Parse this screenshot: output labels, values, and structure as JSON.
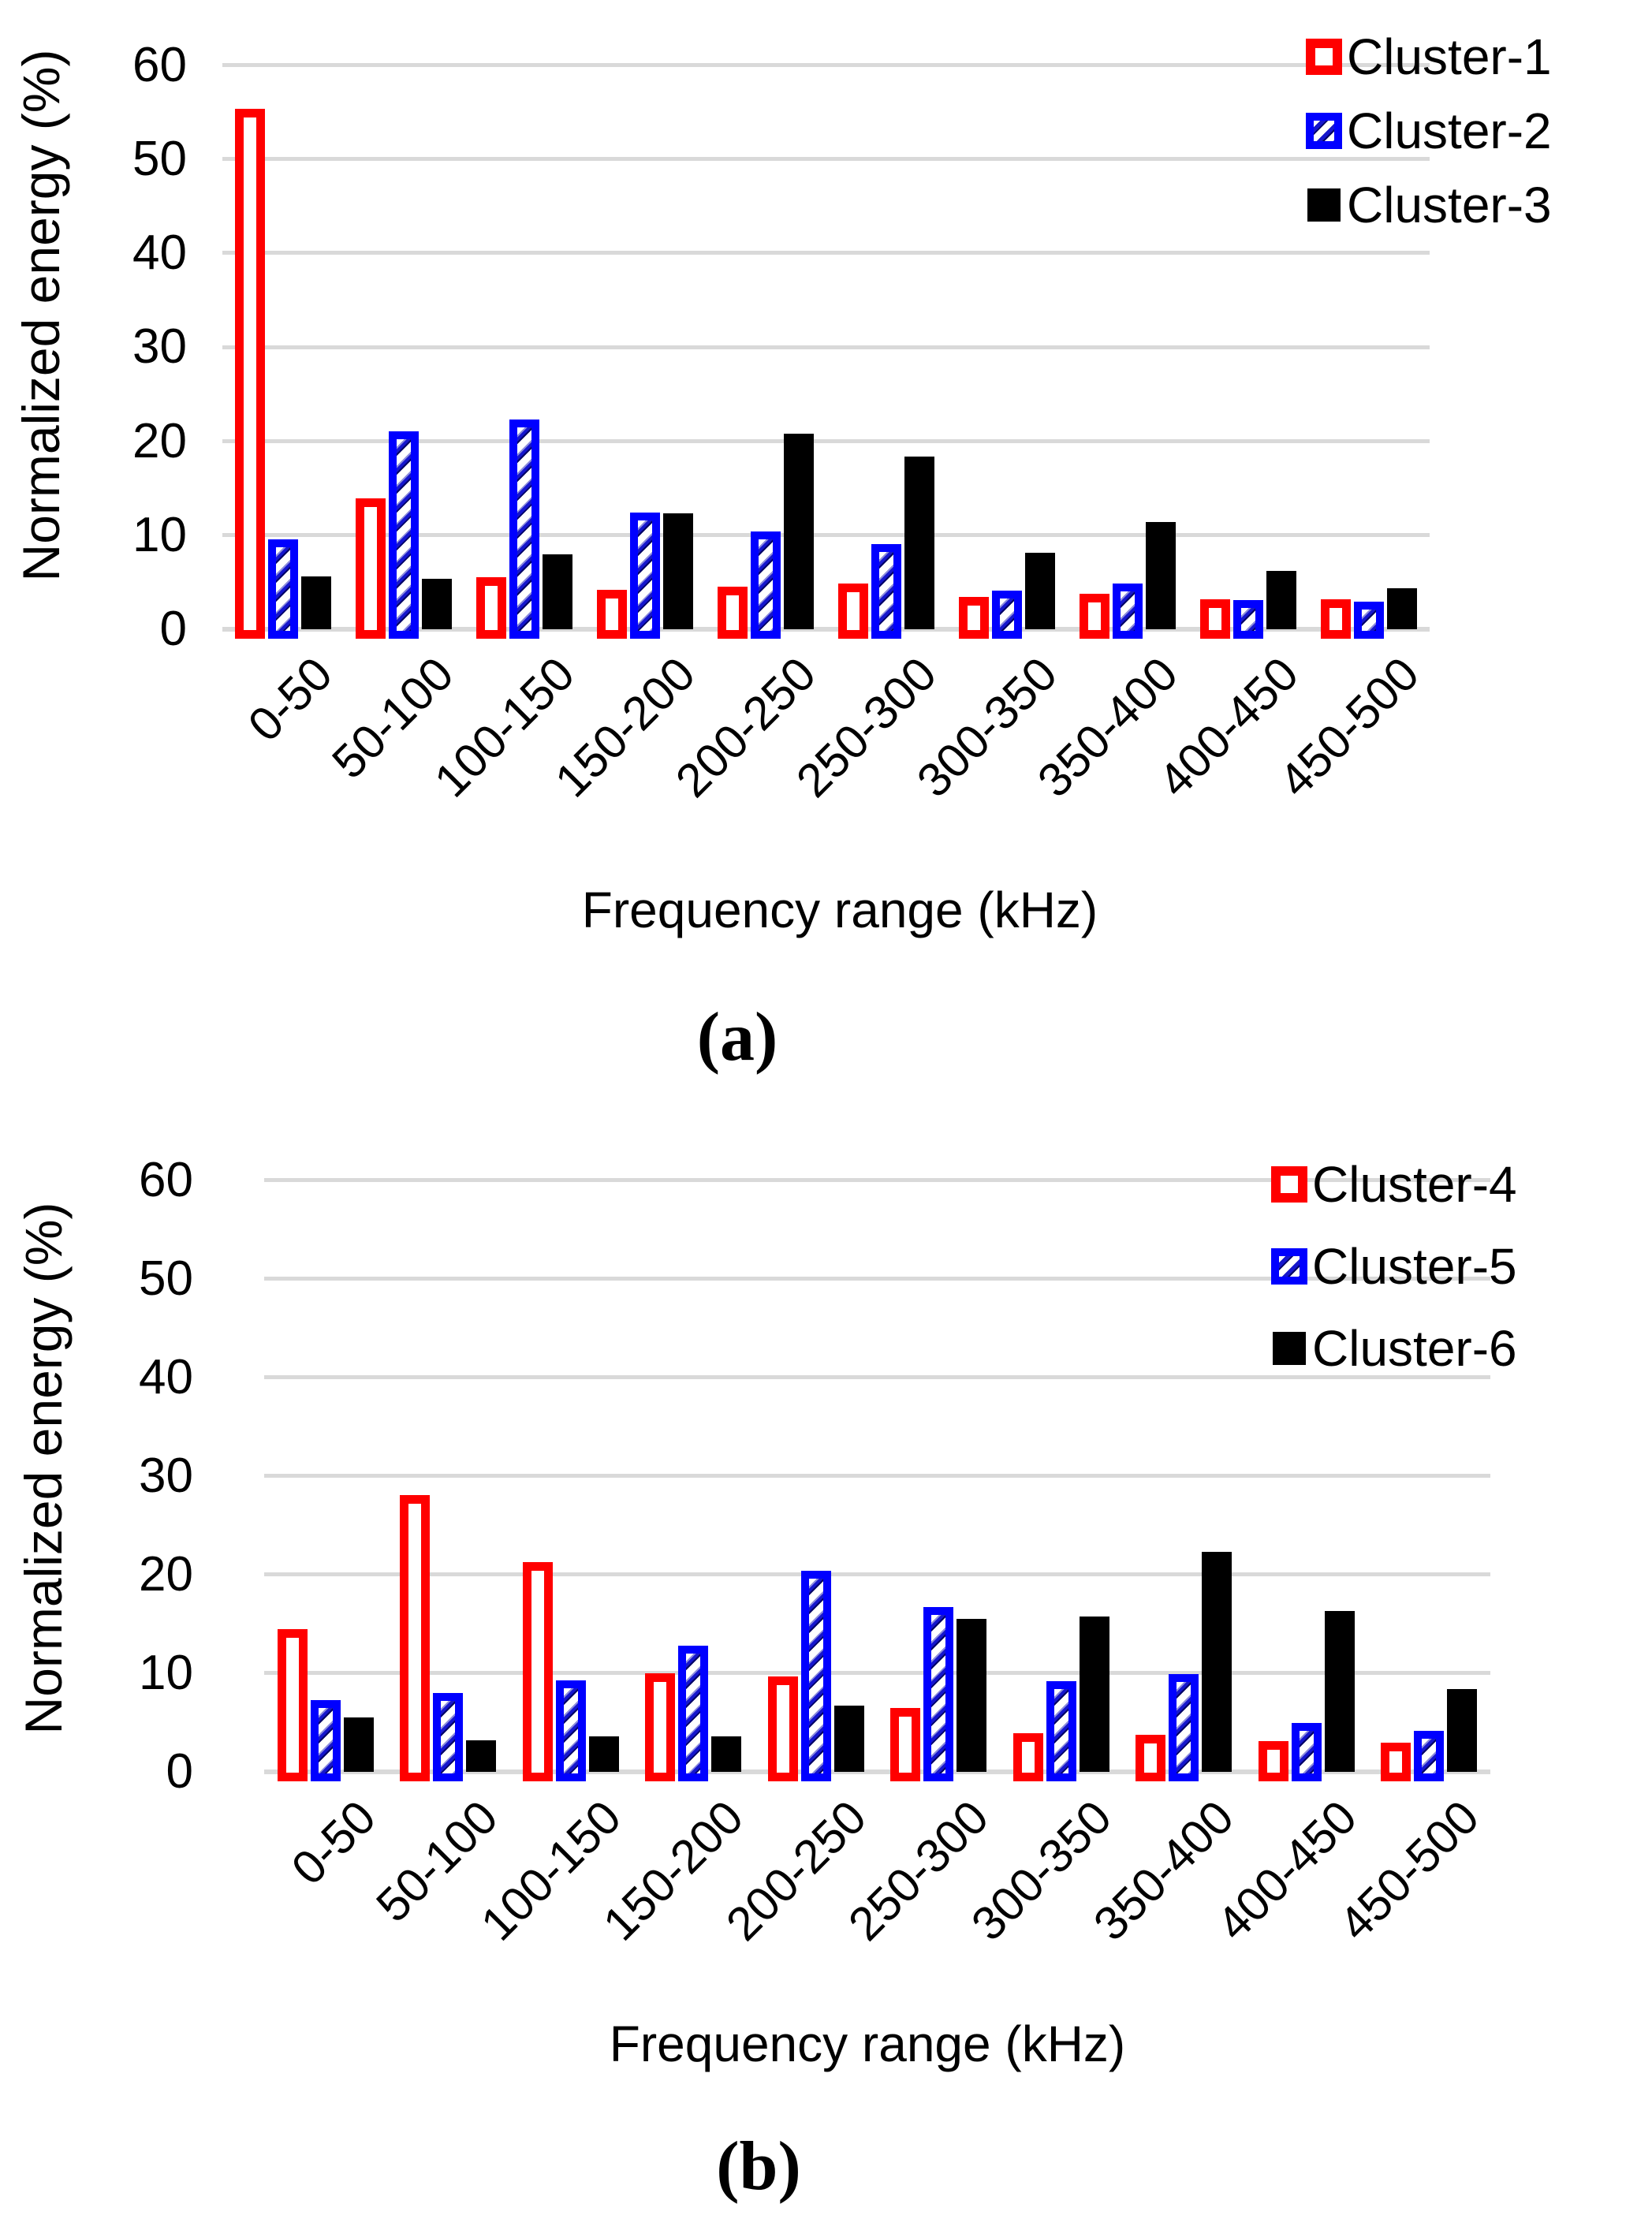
{
  "figure": {
    "background": "#ffffff",
    "gridline_color": "#d9d9d9",
    "text_color": "#000000"
  },
  "chart_data": [
    {
      "id": "a",
      "type": "bar",
      "caption": "(a)",
      "xlabel": "Frequency range (kHz)",
      "ylabel": "Normalized energy (%)",
      "ylim": [
        0,
        60
      ],
      "yticks": [
        0,
        10,
        20,
        30,
        40,
        50,
        60
      ],
      "grid": true,
      "legend_position": "top-right",
      "categories": [
        "0-50",
        "50-100",
        "100-150",
        "150-200",
        "200-250",
        "250-300",
        "300-350",
        "350-400",
        "400-450",
        "450-500"
      ],
      "series": [
        {
          "name": "Cluster-1",
          "style": "red-outline",
          "color": "#ff0000",
          "values": [
            55.4,
            13.9,
            5.5,
            4.2,
            4.5,
            4.9,
            3.4,
            3.8,
            3.2,
            3.2
          ]
        },
        {
          "name": "Cluster-2",
          "style": "blue-hatch",
          "color": "#0000ff",
          "values": [
            9.6,
            21.1,
            22.3,
            12.4,
            10.4,
            9.1,
            4.1,
            4.9,
            3.1,
            2.9
          ]
        },
        {
          "name": "Cluster-3",
          "style": "black-solid",
          "color": "#000000",
          "values": [
            5.6,
            5.4,
            8.0,
            12.3,
            20.8,
            18.4,
            8.1,
            11.4,
            6.2,
            4.4
          ]
        }
      ]
    },
    {
      "id": "b",
      "type": "bar",
      "caption": "(b)",
      "xlabel": "Frequency range (kHz)",
      "ylabel": "Normalized energy (%)",
      "ylim": [
        0,
        60
      ],
      "yticks": [
        0,
        10,
        20,
        30,
        40,
        50,
        60
      ],
      "grid": true,
      "legend_position": "top-right",
      "categories": [
        "0-50",
        "50-100",
        "100-150",
        "150-200",
        "200-250",
        "250-300",
        "300-350",
        "350-400",
        "400-450",
        "450-500"
      ],
      "series": [
        {
          "name": "Cluster-4",
          "style": "red-outline",
          "color": "#ff0000",
          "values": [
            14.5,
            28.1,
            21.3,
            10.0,
            9.7,
            6.5,
            3.9,
            3.8,
            3.1,
            3.0
          ]
        },
        {
          "name": "Cluster-5",
          "style": "blue-hatch",
          "color": "#0000ff",
          "values": [
            7.3,
            8.0,
            9.3,
            12.8,
            20.4,
            16.7,
            9.2,
            9.9,
            5.0,
            4.2
          ]
        },
        {
          "name": "Cluster-6",
          "style": "black-solid",
          "color": "#000000",
          "values": [
            5.5,
            3.2,
            3.6,
            3.6,
            6.7,
            15.5,
            15.8,
            22.3,
            16.3,
            8.4
          ]
        }
      ]
    }
  ]
}
